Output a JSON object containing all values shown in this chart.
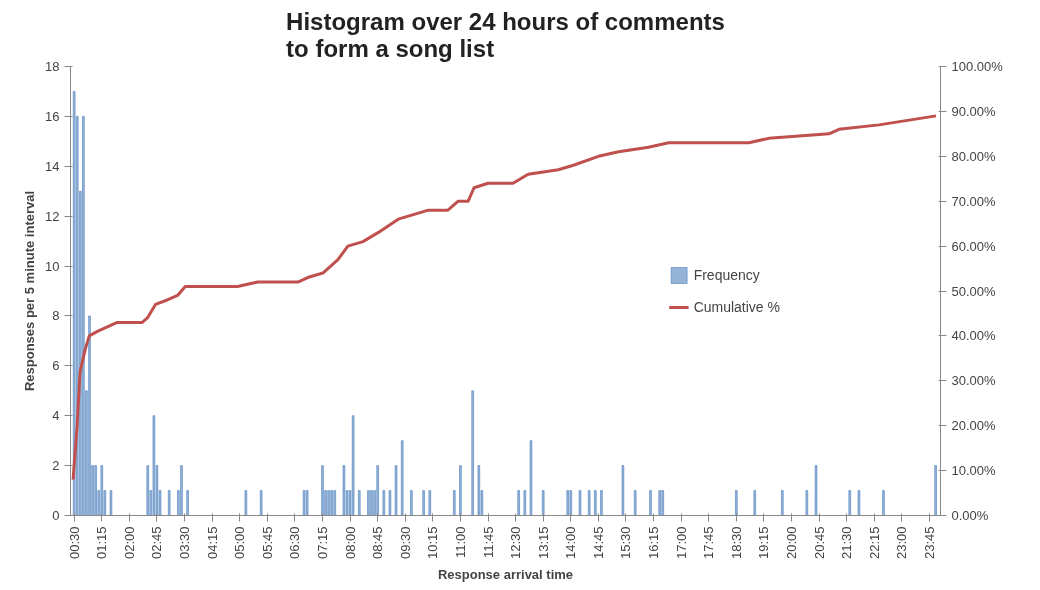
{
  "chart_data": {
    "type": "bar",
    "title": "Histogram over 24 hours of comments to form a song list",
    "xlabel": "Response arrival time",
    "ylabel": "Responses per 5 minute interval",
    "xlim": [
      0.4,
      24.05
    ],
    "xticks": [
      {
        "value": 0.5,
        "label": "00:30"
      },
      {
        "value": 1.25,
        "label": "01:15"
      },
      {
        "value": 2.0,
        "label": "02:00"
      },
      {
        "value": 2.75,
        "label": "02:45"
      },
      {
        "value": 3.5,
        "label": "03:30"
      },
      {
        "value": 4.25,
        "label": "04:15"
      },
      {
        "value": 5.0,
        "label": "05:00"
      },
      {
        "value": 5.75,
        "label": "05:45"
      },
      {
        "value": 6.5,
        "label": "06:30"
      },
      {
        "value": 7.25,
        "label": "07:15"
      },
      {
        "value": 8.0,
        "label": "08:00"
      },
      {
        "value": 8.75,
        "label": "08:45"
      },
      {
        "value": 9.5,
        "label": "09:30"
      },
      {
        "value": 10.25,
        "label": "10:15"
      },
      {
        "value": 11.0,
        "label": "11:00"
      },
      {
        "value": 11.75,
        "label": "11:45"
      },
      {
        "value": 12.5,
        "label": "12:30"
      },
      {
        "value": 13.25,
        "label": "13:15"
      },
      {
        "value": 14.0,
        "label": "14:00"
      },
      {
        "value": 14.75,
        "label": "14:45"
      },
      {
        "value": 15.5,
        "label": "15:30"
      },
      {
        "value": 16.25,
        "label": "16:15"
      },
      {
        "value": 17.0,
        "label": "17:00"
      },
      {
        "value": 17.75,
        "label": "17:45"
      },
      {
        "value": 18.5,
        "label": "18:30"
      },
      {
        "value": 19.25,
        "label": "19:15"
      },
      {
        "value": 20.0,
        "label": "20:00"
      },
      {
        "value": 20.75,
        "label": "20:45"
      },
      {
        "value": 21.5,
        "label": "21:30"
      },
      {
        "value": 22.25,
        "label": "22:15"
      },
      {
        "value": 23.0,
        "label": "23:00"
      },
      {
        "value": 23.75,
        "label": "23:45"
      }
    ],
    "ylim": [
      0,
      18
    ],
    "yticks": [
      0,
      2,
      4,
      6,
      8,
      10,
      12,
      14,
      16,
      18
    ],
    "y2lim": [
      0,
      100
    ],
    "y2ticks": [
      {
        "value": 0,
        "label": "0.00%"
      },
      {
        "value": 10,
        "label": "10.00%"
      },
      {
        "value": 20,
        "label": "20.00%"
      },
      {
        "value": 30,
        "label": "30.00%"
      },
      {
        "value": 40,
        "label": "40.00%"
      },
      {
        "value": 50,
        "label": "50.00%"
      },
      {
        "value": 60,
        "label": "60.00%"
      },
      {
        "value": 70,
        "label": "70.00%"
      },
      {
        "value": 80,
        "label": "80.00%"
      },
      {
        "value": 90,
        "label": "90.00%"
      },
      {
        "value": 100,
        "label": "100.00%"
      }
    ],
    "grid": false,
    "legend": "right",
    "series": [
      {
        "name": "Frequency",
        "color": "#95b3d7",
        "x": [
          0.5,
          0.583,
          0.667,
          0.75,
          0.833,
          0.917,
          1.0,
          1.083,
          1.167,
          1.25,
          1.333,
          1.5,
          2.5,
          2.583,
          2.667,
          2.75,
          2.833,
          3.083,
          3.333,
          3.417,
          3.583,
          5.167,
          5.583,
          6.75,
          6.833,
          7.25,
          7.333,
          7.417,
          7.5,
          7.583,
          7.833,
          7.917,
          8.0,
          8.083,
          8.25,
          8.5,
          8.583,
          8.667,
          8.75,
          8.917,
          9.083,
          9.25,
          9.417,
          9.667,
          10.0,
          10.167,
          10.833,
          11.0,
          11.333,
          11.5,
          11.583,
          12.583,
          12.75,
          12.917,
          13.25,
          13.917,
          14.0,
          14.25,
          14.5,
          14.667,
          14.833,
          15.417,
          15.75,
          16.167,
          16.417,
          16.5,
          18.5,
          19.0,
          19.75,
          20.417,
          20.667,
          21.583,
          21.833,
          22.5,
          23.917
        ],
        "values": [
          17,
          16,
          13,
          16,
          5,
          8,
          2,
          2,
          1,
          2,
          1,
          1,
          2,
          1,
          4,
          2,
          1,
          1,
          1,
          2,
          1,
          1,
          1,
          1,
          1,
          2,
          1,
          1,
          1,
          1,
          2,
          1,
          1,
          4,
          1,
          1,
          1,
          1,
          2,
          1,
          1,
          2,
          3,
          1,
          1,
          1,
          1,
          2,
          5,
          2,
          1,
          1,
          1,
          3,
          1,
          1,
          1,
          1,
          1,
          1,
          1,
          2,
          1,
          1,
          1,
          1,
          1,
          1,
          1,
          1,
          2,
          1,
          1,
          1,
          2
        ]
      },
      {
        "name": "Cumulative %",
        "type": "line",
        "axis": "y2",
        "color": "#c0504d",
        "x": [
          0.47,
          0.58,
          0.66,
          0.8,
          0.91,
          1.13,
          1.4,
          1.67,
          2.35,
          2.49,
          2.71,
          3.03,
          3.31,
          3.52,
          4.94,
          5.49,
          6.58,
          6.85,
          7.26,
          7.67,
          7.94,
          8.35,
          8.76,
          9.31,
          9.72,
          10.13,
          10.66,
          10.94,
          11.21,
          11.37,
          11.75,
          12.43,
          12.84,
          13.66,
          14.07,
          14.75,
          15.3,
          16.11,
          16.66,
          18.84,
          19.38,
          21.02,
          21.29,
          22.38,
          23.93
        ],
        "values": [
          8,
          20,
          32,
          37,
          40,
          41,
          42,
          43,
          43,
          44,
          47,
          48,
          49,
          51,
          51,
          52,
          52,
          53,
          54,
          57,
          60,
          61,
          63,
          66,
          67,
          68,
          68,
          70,
          70,
          73,
          74,
          74,
          76,
          77,
          78,
          80,
          81,
          82,
          83,
          83,
          84,
          85,
          86,
          87,
          89
        ]
      }
    ]
  }
}
